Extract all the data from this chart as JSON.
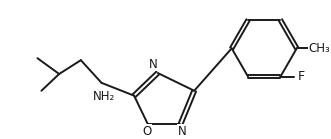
{
  "background_color": "#ffffff",
  "bond_color": "#1a1a1a",
  "text_color": "#1a1a1a",
  "label_NH2": "NH₂",
  "label_N": "N",
  "label_O": "O",
  "label_F": "F",
  "label_CH3": "CH₃",
  "figsize": [
    3.31,
    1.39
  ],
  "dpi": 100
}
